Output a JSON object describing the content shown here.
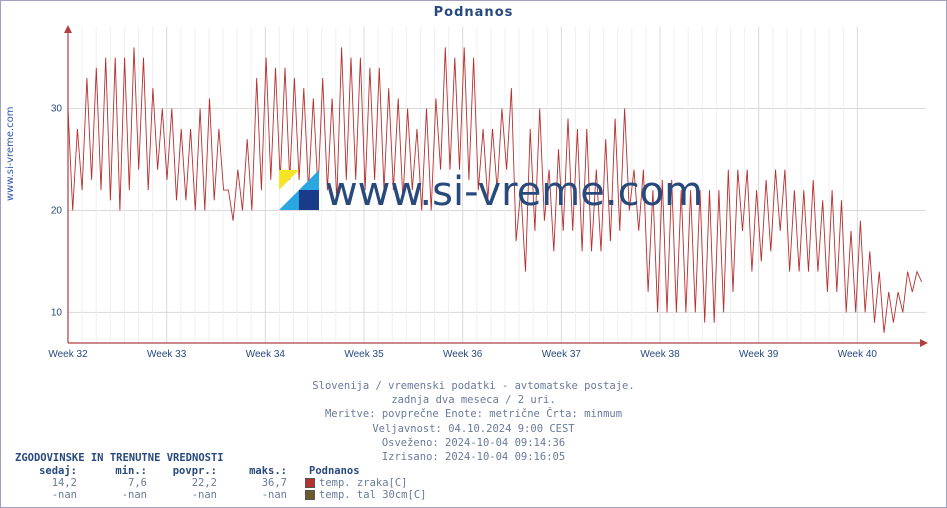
{
  "title": "Podnanos",
  "sidebar_url": "www.si-vreme.com",
  "watermark_text": "www.si-vreme.com",
  "chart": {
    "type": "line",
    "background_color": "#ffffff",
    "grid_color": "#d9d9d9",
    "axis_color": "#b04040",
    "xlabel_color": "#28497c",
    "ylabel_color": "#28497c",
    "line_color": "#b73030",
    "line_width": 0.9,
    "ylim": [
      7,
      38
    ],
    "yticks": [
      10,
      20,
      30
    ],
    "xticks": [
      "Week 32",
      "Week 33",
      "Week 34",
      "Week 35",
      "Week 36",
      "Week 37",
      "Week 38",
      "Week 39",
      "Week 40"
    ],
    "xtick_positions": [
      0,
      0.115,
      0.23,
      0.345,
      0.46,
      0.575,
      0.69,
      0.805,
      0.92
    ],
    "series": [
      30,
      20,
      28,
      22,
      33,
      23,
      34,
      22,
      35,
      21,
      35,
      20,
      35,
      22,
      36,
      24,
      35,
      22,
      32,
      24,
      30,
      23,
      30,
      21,
      28,
      21,
      28,
      20,
      30,
      20,
      31,
      21,
      28,
      22,
      22,
      19,
      24,
      20,
      27,
      20,
      33,
      22,
      35,
      23,
      34,
      23,
      34,
      23,
      33,
      23,
      32,
      22,
      31,
      22,
      33,
      22,
      31,
      21,
      36,
      23,
      35,
      23,
      35,
      22,
      34,
      23,
      34,
      22,
      32,
      22,
      31,
      21,
      30,
      22,
      28,
      20,
      30,
      20,
      31,
      24,
      36,
      24,
      35,
      24,
      36,
      23,
      35,
      22,
      28,
      21,
      28,
      22,
      30,
      24,
      32,
      17,
      22,
      14,
      28,
      18,
      30,
      19,
      24,
      16,
      26,
      18,
      29,
      18,
      28,
      16,
      28,
      16,
      24,
      16,
      27,
      17,
      29,
      18,
      30,
      20,
      24,
      18,
      24,
      12,
      22,
      10,
      23,
      10,
      23,
      10,
      22,
      10,
      22,
      10,
      22,
      9,
      22,
      9,
      22,
      10,
      24,
      12,
      24,
      18,
      24,
      14,
      22,
      15,
      23,
      16,
      24,
      18,
      24,
      14,
      22,
      14,
      22,
      14,
      23,
      14,
      21,
      12,
      22,
      12,
      21,
      10,
      18,
      10,
      19,
      10,
      16,
      9,
      14,
      8,
      12,
      9,
      12,
      10,
      14,
      12,
      14,
      13
    ]
  },
  "meta": {
    "line1": "Slovenija / vremenski podatki - avtomatske postaje.",
    "line2": "zadnja dva meseca / 2 uri.",
    "line3": "Meritve: povprečne  Enote: metrične  Črta: minmum",
    "line4": "Veljavnost: 04.10.2024 9:00 CEST",
    "line5": "Osveženo: 2024-10-04 09:14:36",
    "line6": "Izrisano: 2024-10-04 09:16:05"
  },
  "table": {
    "title": "ZGODOVINSKE IN TRENUTNE VREDNOSTI",
    "headers": [
      "sedaj:",
      "min.:",
      "povpr.:",
      "maks.:"
    ],
    "station": "Podnanos",
    "rows": [
      {
        "values": [
          "14,2",
          "7,6",
          "22,2",
          "36,7"
        ],
        "swatch": "#b73030",
        "label": "temp. zraka[C]"
      },
      {
        "values": [
          "-nan",
          "-nan",
          "-nan",
          "-nan"
        ],
        "swatch": "#6b5a2a",
        "label": "temp. tal 30cm[C]"
      }
    ]
  },
  "wm_icon_colors": {
    "top_left": "#f6e526",
    "top_right": "#2aa6e0",
    "bot_left": "#2aa6e0",
    "bot_right": "#1a3a8a"
  }
}
